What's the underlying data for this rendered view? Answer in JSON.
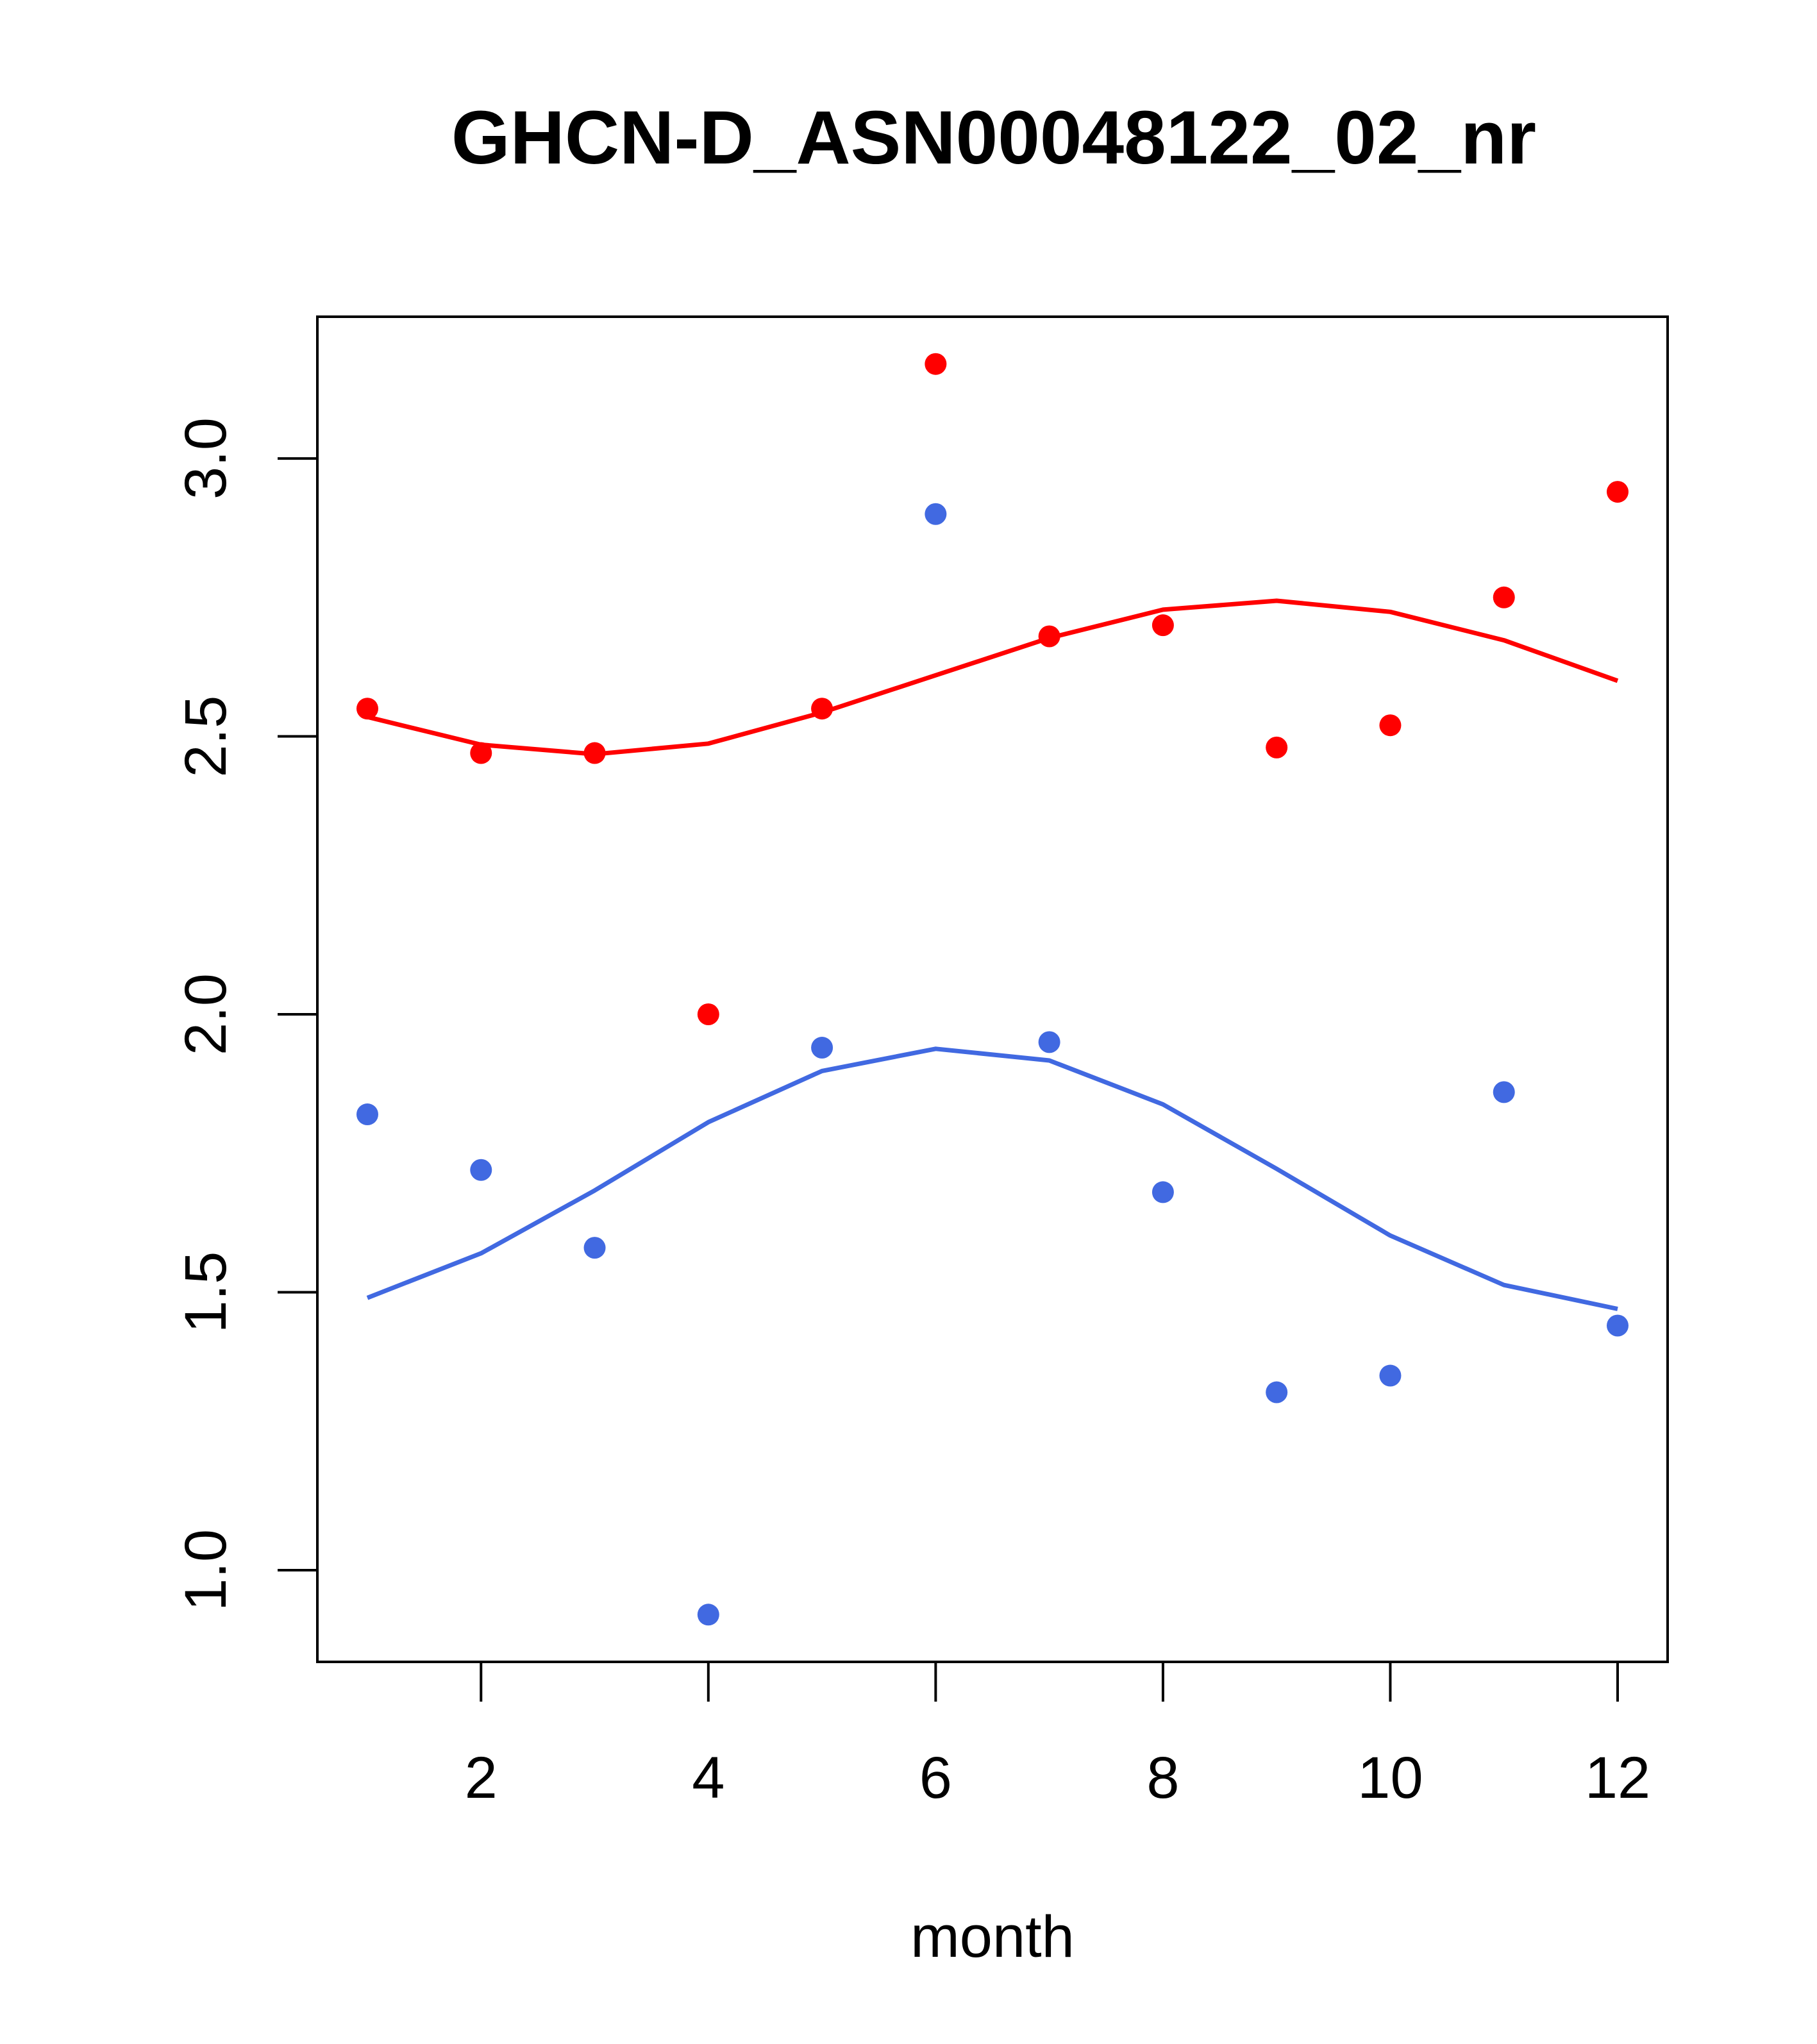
{
  "chart_data": {
    "type": "scatter",
    "title": "GHCN-D_ASN00048122_02_nr",
    "xlabel": "month",
    "ylabel": "",
    "xlim": [
      0.56,
      12.44
    ],
    "ylim": [
      0.835,
      3.255
    ],
    "x_ticks": [
      2,
      4,
      6,
      8,
      10,
      12
    ],
    "x_tick_labels": [
      "2",
      "4",
      "6",
      "8",
      "10",
      "12"
    ],
    "y_ticks": [
      1.0,
      1.5,
      2.0,
      2.5,
      3.0
    ],
    "y_tick_labels": [
      "1.0",
      "1.5",
      "2.0",
      "2.5",
      "3.0"
    ],
    "grid": false,
    "legend": "none",
    "x": [
      1,
      2,
      3,
      4,
      5,
      6,
      7,
      8,
      9,
      10,
      11,
      12
    ],
    "series": [
      {
        "color": "#ff0000",
        "points": [
          2.55,
          2.47,
          2.47,
          2.0,
          2.55,
          3.17,
          2.68,
          2.7,
          2.48,
          2.52,
          2.75,
          2.94
        ],
        "smooth": [
          2.535,
          2.485,
          2.468,
          2.487,
          2.543,
          2.61,
          2.677,
          2.728,
          2.744,
          2.724,
          2.673,
          2.6
        ]
      },
      {
        "color": "#4169e1",
        "points": [
          1.82,
          1.72,
          1.58,
          0.92,
          1.94,
          2.9,
          1.95,
          1.68,
          1.32,
          1.35,
          1.86,
          1.44
        ],
        "smooth": [
          1.49,
          1.57,
          1.683,
          1.806,
          1.898,
          1.938,
          1.917,
          1.838,
          1.722,
          1.602,
          1.513,
          1.47
        ]
      }
    ]
  }
}
